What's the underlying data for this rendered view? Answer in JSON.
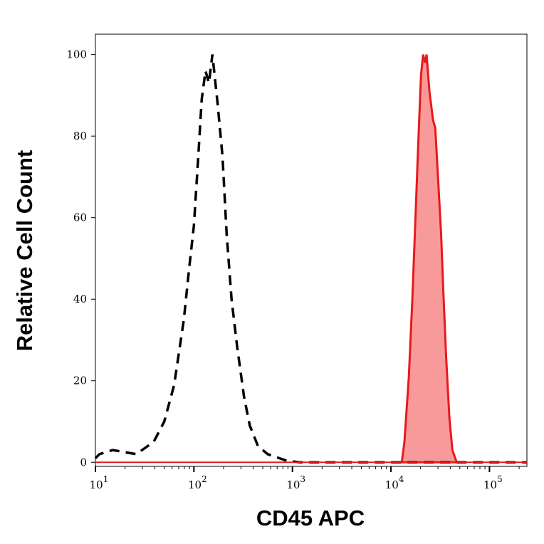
{
  "chart_data": {
    "type": "area",
    "title": "",
    "xlabel": "CD45 APC",
    "ylabel": "Relative Cell Count",
    "xscale": "log",
    "xlim": [
      10,
      240000
    ],
    "ylim": [
      -1,
      105
    ],
    "xticks": [
      10,
      100,
      1000,
      10000,
      100000
    ],
    "xtick_labels": [
      {
        "base": "10",
        "exp": "1"
      },
      {
        "base": "10",
        "exp": "2"
      },
      {
        "base": "10",
        "exp": "3"
      },
      {
        "base": "10",
        "exp": "4"
      },
      {
        "base": "10",
        "exp": "5"
      }
    ],
    "yticks": [
      0,
      20,
      40,
      60,
      80,
      100
    ],
    "ytick_labels": [
      "0",
      "20",
      "40",
      "60",
      "80",
      "100"
    ],
    "grid": false,
    "series": [
      {
        "style": "dashed-line",
        "color": "#000000",
        "x": [
          10,
          11,
          15,
          26,
          39,
          50,
          63,
          79,
          89,
          100,
          110,
          120,
          131,
          142,
          154,
          174,
          195,
          215,
          241,
          276,
          323,
          369,
          447,
          560,
          845,
          1180,
          240000
        ],
        "y": [
          1,
          2,
          3,
          2,
          5,
          10,
          19,
          35,
          47,
          58,
          74,
          89,
          96,
          93,
          100,
          88,
          75,
          56,
          40,
          28,
          16,
          9,
          4,
          2,
          0.5,
          0,
          0
        ]
      },
      {
        "style": "filled",
        "color": "#e8191c",
        "fill": "#f99a9a",
        "x": [
          12900,
          13700,
          15200,
          16500,
          17800,
          19000,
          20200,
          21200,
          22300,
          23000,
          24600,
          26700,
          28200,
          30000,
          32300,
          34000,
          36300,
          39200,
          42000,
          46500
        ],
        "y": [
          0,
          5,
          21,
          40,
          61,
          79,
          95,
          100,
          98,
          100,
          91,
          84,
          82,
          70,
          56,
          42,
          26,
          11,
          3,
          0
        ]
      }
    ]
  }
}
